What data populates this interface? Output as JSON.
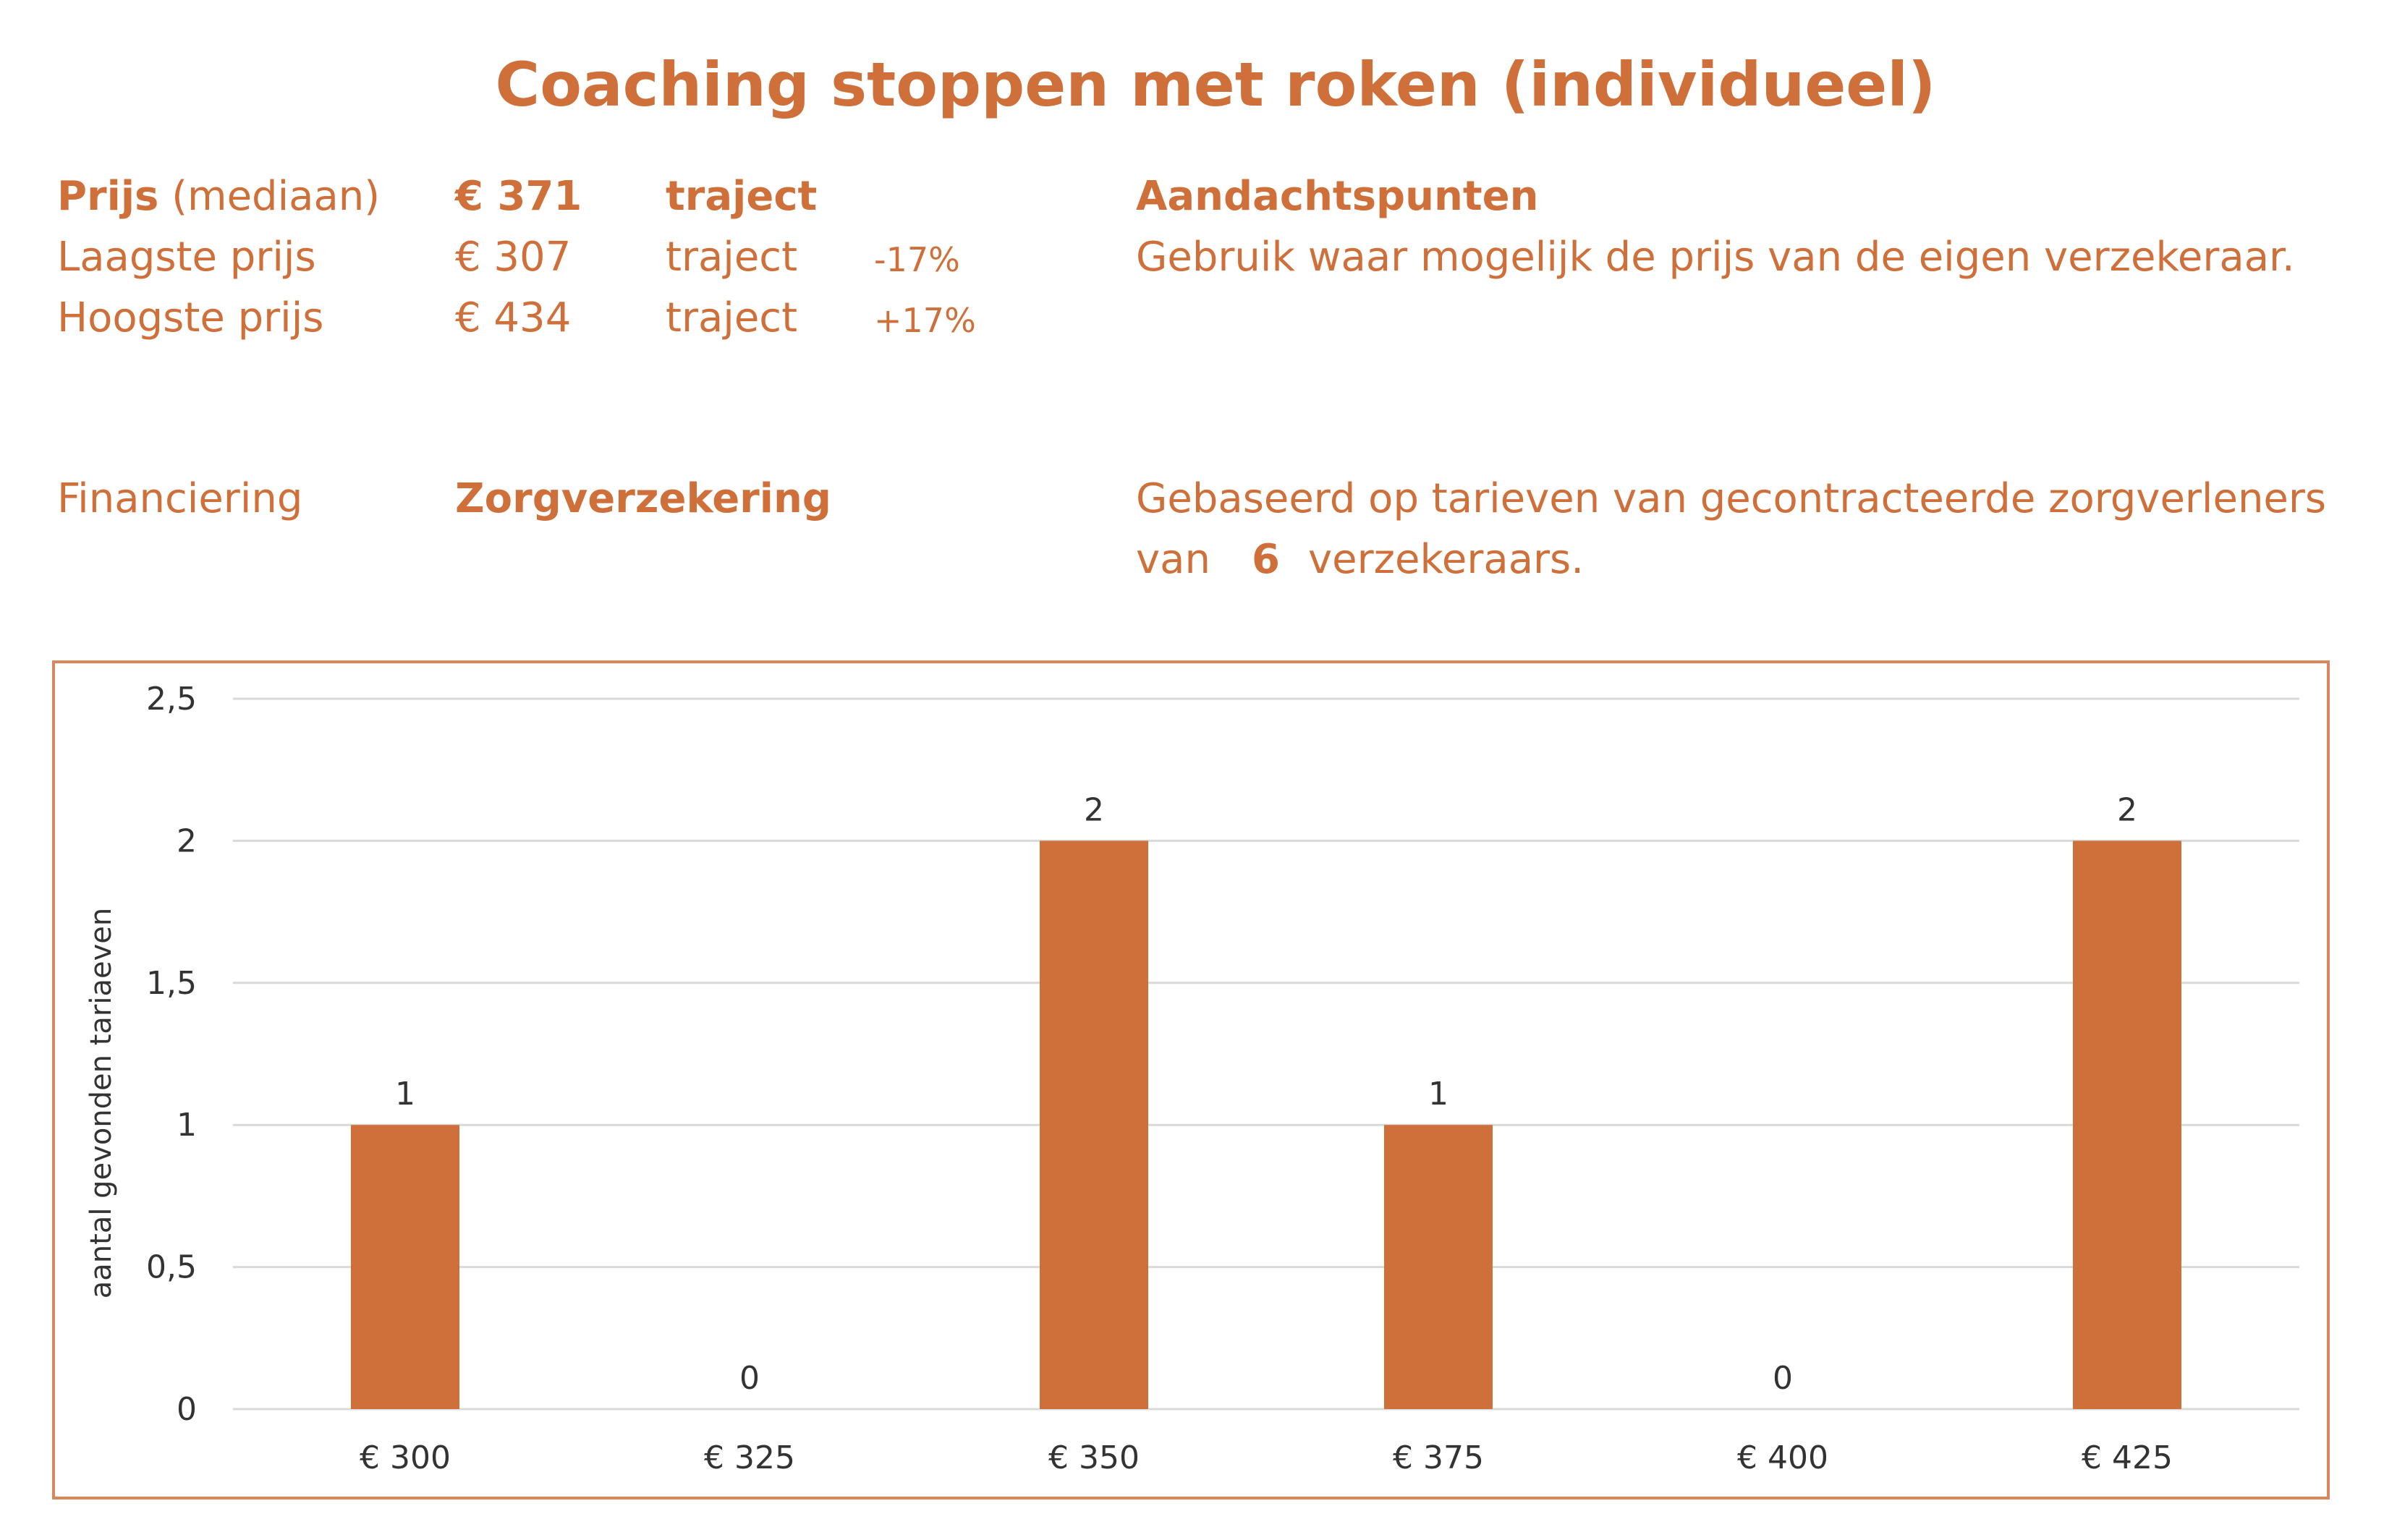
{
  "title": "Coaching stoppen met roken (individueel)",
  "prices": {
    "median": {
      "label_bold": "Prijs",
      "label_rest": " (mediaan)",
      "value": "€ 371",
      "unit": "traject"
    },
    "low": {
      "label": "Laagste prijs",
      "value": "€ 307",
      "unit": "traject",
      "pct": "-17%"
    },
    "high": {
      "label": "Hoogste prijs",
      "value": "€ 434",
      "unit": "traject",
      "pct": "+17%"
    }
  },
  "notes": {
    "heading": "Aandachtspunten",
    "text": "Gebruik waar mogelijk de prijs van de eigen verzekeraar."
  },
  "financing": {
    "label": "Financiering",
    "value": "Zorgverzekering"
  },
  "basis": {
    "line1": "Gebaseerd op tarieven van gecontracteerde zorgverleners",
    "line2_pre": "van",
    "count": "6",
    "line2_post": "verzekeraars."
  },
  "colors": {
    "accent": "#cf703a",
    "bar": "#cf703a",
    "grid": "#d9d9d9",
    "axis_text": "#333333"
  },
  "chart_data": {
    "type": "bar",
    "categories": [
      "€ 300",
      "€ 325",
      "€ 350",
      "€ 375",
      "€ 400",
      "€ 425"
    ],
    "values": [
      1,
      0,
      2,
      1,
      0,
      2
    ],
    "data_labels": [
      "1",
      "0",
      "2",
      "1",
      "0",
      "2"
    ],
    "ylabel": "aantal gevonden tariaeven",
    "ylim": [
      0,
      2.5
    ],
    "yticks": [
      0,
      0.5,
      1,
      1.5,
      2,
      2.5
    ],
    "ytick_labels": [
      "0",
      "0,5",
      "1",
      "1,5",
      "2",
      "2,5"
    ],
    "grid": true,
    "legend": "none"
  }
}
